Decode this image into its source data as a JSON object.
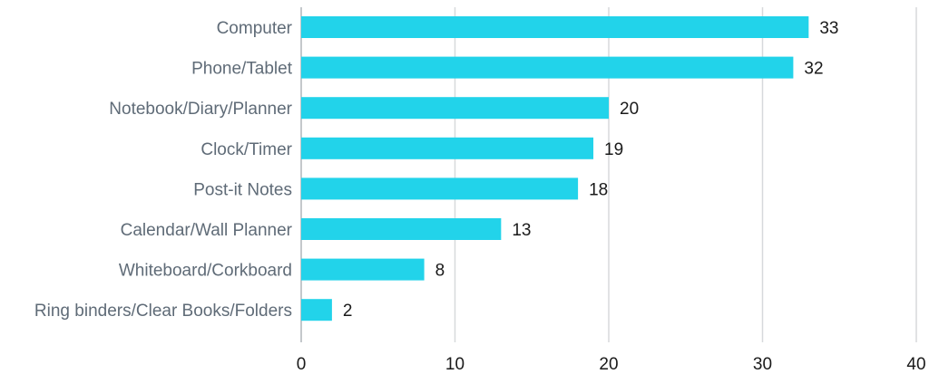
{
  "chart_data": {
    "type": "bar",
    "orientation": "horizontal",
    "categories": [
      "Computer",
      "Phone/Tablet",
      "Notebook/Diary/Planner",
      "Clock/Timer",
      "Post-it Notes",
      "Calendar/Wall Planner",
      "Whiteboard/Corkboard",
      "Ring binders/Clear Books/Folders"
    ],
    "values": [
      33,
      32,
      20,
      19,
      18,
      13,
      8,
      2
    ],
    "xlim": [
      0,
      40
    ],
    "xticks": [
      0,
      10,
      20,
      30,
      40
    ],
    "grid": true,
    "bar_color": "#22d3ea",
    "data_labels": true
  }
}
